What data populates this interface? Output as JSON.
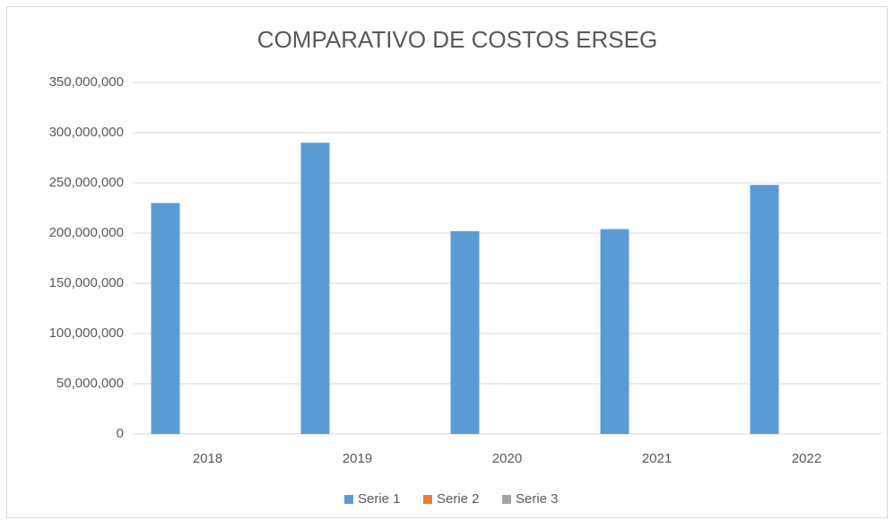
{
  "chart_data": {
    "type": "bar",
    "title": "COMPARATIVO DE COSTOS ERSEG",
    "categories": [
      "2018",
      "2019",
      "2020",
      "2021",
      "2022"
    ],
    "series": [
      {
        "name": "Serie 1",
        "color": "#5b9bd5",
        "values": [
          230000000,
          290000000,
          202000000,
          204000000,
          248000000
        ]
      },
      {
        "name": "Serie 2",
        "color": "#ed7d31",
        "values": [
          0,
          0,
          0,
          0,
          0
        ]
      },
      {
        "name": "Serie 3",
        "color": "#a5a5a5",
        "values": [
          0,
          0,
          0,
          0,
          0
        ]
      }
    ],
    "ylim": [
      0,
      350000000
    ],
    "yticks": [
      0,
      {
        "value": 50000000,
        "label": "50,000,000"
      },
      {
        "value": 100000000,
        "label": "100,000,000"
      },
      {
        "value": 150000000,
        "label": "150,000,000"
      },
      {
        "value": 200000000,
        "label": "200,000,000"
      },
      {
        "value": 250000000,
        "label": "250,000,000"
      },
      {
        "value": 300000000,
        "label": "300,000,000"
      },
      {
        "value": 350000000,
        "label": "350,000,000"
      }
    ],
    "grid": true,
    "legend": "bottom"
  }
}
